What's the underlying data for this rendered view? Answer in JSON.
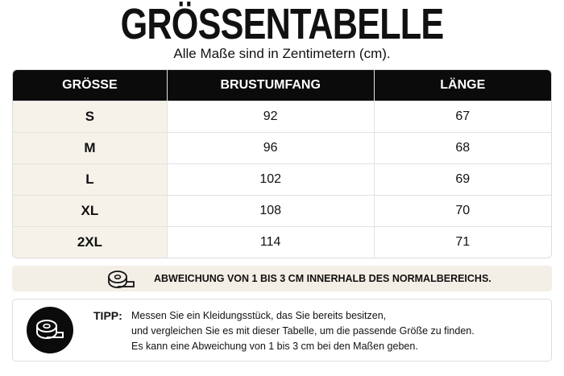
{
  "header": {
    "title": "GRÖSSENTABELLE",
    "subtitle": "Alle Maße sind in Zentimetern (cm)."
  },
  "table": {
    "columns": [
      "GRÖSSE",
      "BRUSTUMFANG",
      "LÄNGE"
    ],
    "rows": [
      [
        "S",
        92,
        67
      ],
      [
        "M",
        96,
        68
      ],
      [
        "L",
        102,
        69
      ],
      [
        "XL",
        108,
        70
      ],
      [
        "2XL",
        114,
        71
      ]
    ]
  },
  "notice": {
    "text": "ABWEICHUNG VON 1 BIS 3 CM INNERHALB DES NORMALBEREICHS."
  },
  "tip": {
    "label": "TIPP:",
    "lines": [
      "Messen Sie ein Kleidungsstück, das Sie bereits besitzen,",
      "und vergleichen Sie es mit dieser Tabelle, um die passende Größe zu finden.",
      "Es kann eine Abweichung von 1 bis 3 cm bei den Maßen geben."
    ]
  }
}
